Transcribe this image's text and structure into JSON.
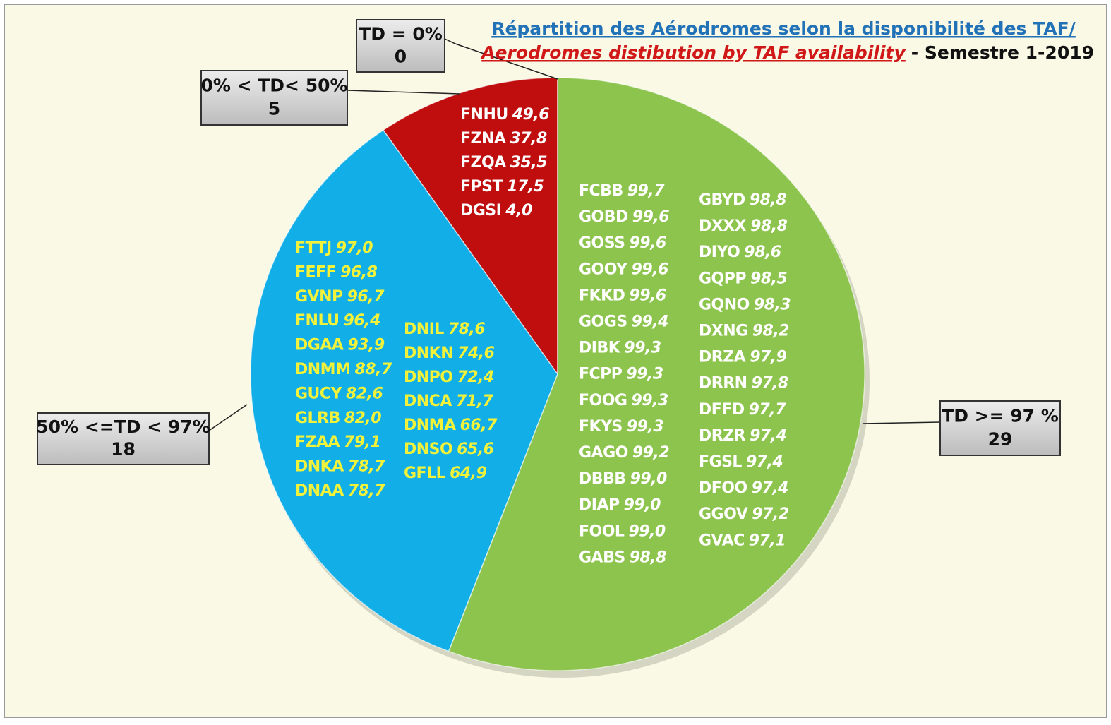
{
  "chart_data": {
    "type": "pie",
    "title": "Répartition des Aérodromes selon la disponibilité des  TAF/",
    "subtitle": "Aerodromes distibution by TAF availability",
    "period": "- Semestre 1-2019",
    "categories": [
      "TD = 0%",
      "0% < TD< 50%",
      "50% <=TD < 97%",
      "TD >= 97 %"
    ],
    "values": [
      0,
      5,
      18,
      29
    ],
    "colors": [
      "#e8e8e8",
      "#c00d0d",
      "#12aee8",
      "#8dc44e"
    ],
    "stations": [
      [],
      [
        {
          "codes": [
            "FNHU",
            "FZNA",
            "FZQA",
            "FPST",
            "DGSI"
          ],
          "values": [
            49.6,
            37.8,
            35.5,
            17.5,
            4
          ],
          "value_labels": [
            "49,6",
            "37,8",
            "35,5",
            "17,5",
            "4,0"
          ]
        }
      ],
      [
        {
          "codes": [
            "FTTJ",
            "FEFF",
            "GVNP",
            "FNLU",
            "DGAA",
            "DNMM",
            "GUCY",
            "GLRB",
            "FZAA",
            "DNKA",
            "DNAA"
          ],
          "values": [
            97,
            96.8,
            96.7,
            96.4,
            93.9,
            88.7,
            82.6,
            82,
            79.1,
            78.7,
            78.7
          ],
          "value_labels": [
            "97,0",
            "96,8",
            "96,7",
            "96,4",
            "93,9",
            "88,7",
            "82,6",
            "82,0",
            "79,1",
            "78,7",
            "78,7"
          ]
        },
        {
          "codes": [
            "DNIL",
            "DNKN",
            "DNPO",
            "DNCA",
            "DNMA",
            "DNSO",
            "GFLL"
          ],
          "values": [
            78.6,
            74.6,
            72.4,
            71.7,
            66.7,
            65.6,
            64.9
          ],
          "value_labels": [
            "78,6",
            "74,6",
            "72,4",
            "71,7",
            "66,7",
            "65,6",
            "64,9"
          ]
        }
      ],
      [
        {
          "codes": [
            "FCBB",
            "GOBD",
            "GOSS",
            "GOOY",
            "FKKD",
            "GOGS",
            "DIBK",
            "FCPP",
            "FOOG",
            "FKYS",
            "GAGO",
            "DBBB",
            "DIAP",
            "FOOL",
            "GABS"
          ],
          "values": [
            99.7,
            99.6,
            99.6,
            99.6,
            99.6,
            99.4,
            99.3,
            99.3,
            99.3,
            99.3,
            99.2,
            99,
            99,
            99,
            98.8
          ],
          "value_labels": [
            "99,7",
            "99,6",
            "99,6",
            "99,6",
            "99,6",
            "99,4",
            "99,3",
            "99,3",
            "99,3",
            "99,3",
            "99,2",
            "99,0",
            "99,0",
            "99,0",
            "98,8"
          ]
        },
        {
          "codes": [
            "GBYD",
            "DXXX",
            "DIYO",
            "GQPP",
            "GQNO",
            "DXNG",
            "DRZA",
            "DRRN",
            "DFFD",
            "DRZR",
            "FGSL",
            "DFOO",
            "GGOV",
            "GVAC"
          ],
          "values": [
            98.8,
            98.8,
            98.6,
            98.5,
            98.3,
            98.2,
            97.9,
            97.8,
            97.7,
            97.4,
            97.4,
            97.4,
            97.2,
            97.1
          ],
          "value_labels": [
            "98,8",
            "98,8",
            "98,6",
            "98,5",
            "98,3",
            "98,2",
            "97,9",
            "97,8",
            "97,7",
            "97,4",
            "97,4",
            "97,4",
            "97,2",
            "97,1"
          ]
        }
      ]
    ]
  }
}
